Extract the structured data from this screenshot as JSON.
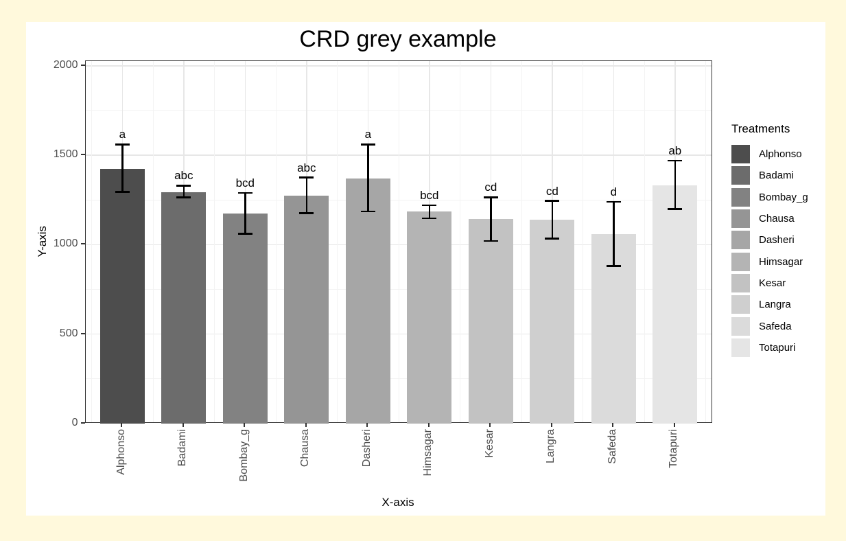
{
  "page": {
    "background_color": "#FFF9DC",
    "figure_background": "#FFFFFF"
  },
  "chart_data": {
    "type": "bar",
    "title": "CRD grey example",
    "xlabel": "X-axis",
    "ylabel": "Y-axis",
    "ylim": [
      0,
      2000
    ],
    "y_major_ticks": [
      0,
      500,
      1000,
      1500,
      2000
    ],
    "y_minor_ticks": [
      250,
      750,
      1250,
      1750
    ],
    "grid": "on",
    "legend_position": "right",
    "categories": [
      "Alphonso",
      "Badami",
      "Bombay_g",
      "Chausa",
      "Dasheri",
      "Himsagar",
      "Kesar",
      "Langra",
      "Safeda",
      "Totapuri"
    ],
    "values": [
      1425,
      1295,
      1175,
      1275,
      1370,
      1185,
      1145,
      1140,
      1060,
      1330
    ],
    "error_low": [
      1295,
      1265,
      1060,
      1175,
      1185,
      1148,
      1020,
      1035,
      880,
      1200
    ],
    "error_high": [
      1560,
      1330,
      1290,
      1375,
      1560,
      1220,
      1265,
      1245,
      1240,
      1470
    ],
    "sig_letters": [
      "a",
      "abc",
      "bcd",
      "abc",
      "a",
      "bcd",
      "cd",
      "cd",
      "d",
      "ab"
    ],
    "bar_colors": [
      "#4d4d4d",
      "#6c6c6c",
      "#828282",
      "#959595",
      "#a6a6a6",
      "#b4b4b4",
      "#c2c2c2",
      "#cfcfcf",
      "#dbdbdb",
      "#e5e5e5"
    ],
    "bar_border_colors": "none",
    "error_bar_color": "#000000",
    "axis_text_color": "#4d4d4d",
    "panel_border_color": "#333333",
    "legend": {
      "title": "Treatments",
      "entries": [
        "Alphonso",
        "Badami",
        "Bombay_g",
        "Chausa",
        "Dasheri",
        "Himsagar",
        "Kesar",
        "Langra",
        "Safeda",
        "Totapuri"
      ]
    }
  }
}
